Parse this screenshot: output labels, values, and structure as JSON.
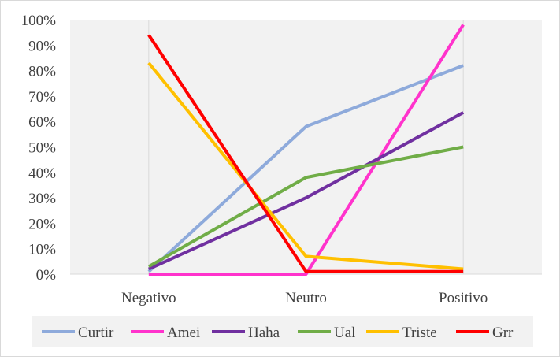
{
  "chart_data": {
    "type": "line",
    "categories": [
      "Negativo",
      "Neutro",
      "Positivo"
    ],
    "ylim": [
      0,
      100
    ],
    "yticks": [
      "0%",
      "10%",
      "20%",
      "30%",
      "40%",
      "50%",
      "60%",
      "70%",
      "80%",
      "90%",
      "100%"
    ],
    "grid": "vertical lines at categories only",
    "legend_position": "bottom",
    "series": [
      {
        "name": "Curtir",
        "color": "#8eaadb",
        "values": [
          1,
          58,
          82
        ]
      },
      {
        "name": "Amei",
        "color": "#ff33cc",
        "values": [
          0,
          0,
          98
        ]
      },
      {
        "name": "Haha",
        "color": "#7030a0",
        "values": [
          2,
          30,
          63.5
        ]
      },
      {
        "name": "Ual",
        "color": "#70ad47",
        "values": [
          3,
          38,
          50
        ]
      },
      {
        "name": "Triste",
        "color": "#ffc000",
        "values": [
          83,
          7,
          2
        ]
      },
      {
        "name": "Grr",
        "color": "#ff0000",
        "values": [
          94,
          1,
          1
        ]
      }
    ]
  }
}
